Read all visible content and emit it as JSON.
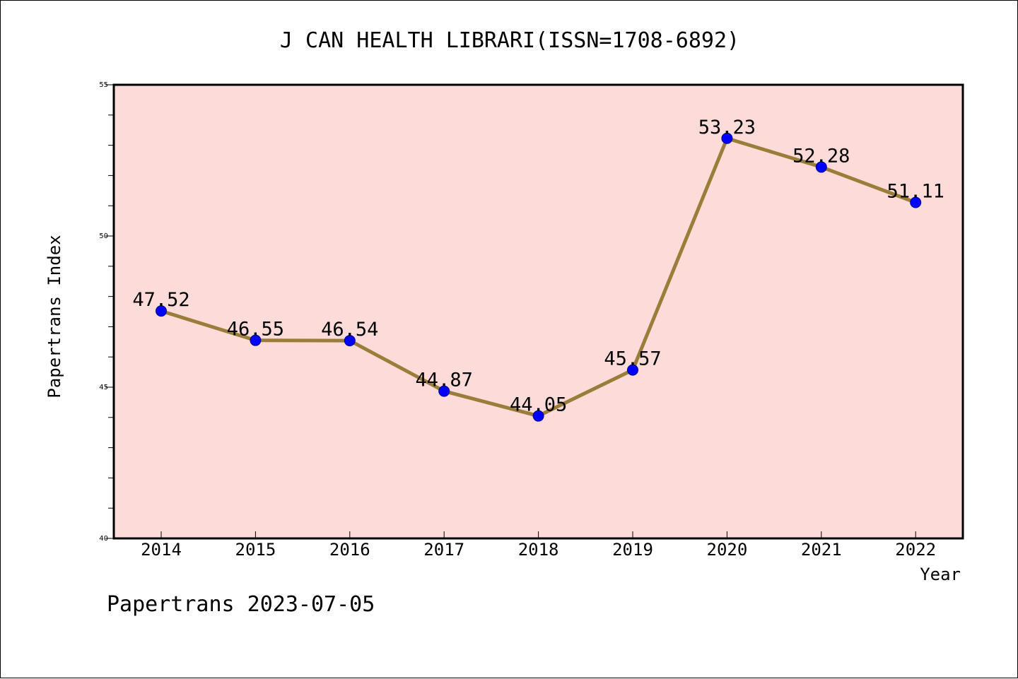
{
  "chart_data": {
    "type": "line",
    "title": "J CAN HEALTH LIBRARI(ISSN=1708-6892)",
    "xlabel": "Year",
    "ylabel": "Papertrans Index",
    "categories": [
      "2014",
      "2015",
      "2016",
      "2017",
      "2018",
      "2019",
      "2020",
      "2021",
      "2022"
    ],
    "series": [
      {
        "values": [
          47.52,
          46.55,
          46.54,
          44.87,
          44.05,
          45.57,
          53.23,
          52.28,
          51.11
        ],
        "labels": [
          "47.52",
          "46.55",
          "46.54",
          "44.87",
          "44.05",
          "45.57",
          "53.23",
          "52.28",
          "51.11"
        ]
      }
    ],
    "ylim": [
      40,
      55
    ],
    "yticks": [
      40,
      45,
      50,
      55
    ],
    "ytick_labels": [
      "40",
      "45",
      "50",
      "55"
    ],
    "yminor_step": 1,
    "grid": false,
    "legend": "none"
  },
  "footer": {
    "text": "Papertrans 2023-07-05"
  },
  "colors": {
    "plot_background": "#fddbd8",
    "line": "#9b7d3a",
    "marker_fill": "#0000ff",
    "marker_edge": "#00008b",
    "axis": "#000000",
    "text": "#000000"
  }
}
